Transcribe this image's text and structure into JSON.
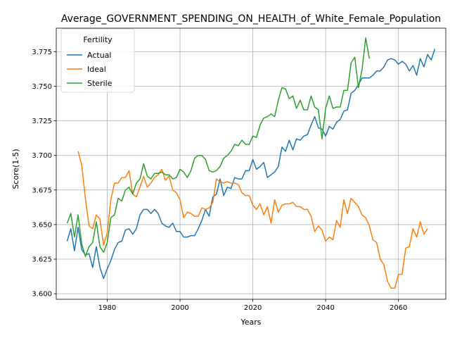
{
  "chart_data": {
    "type": "line",
    "title": "Average_GOVERNMENT_SPENDING_ON_HEALTH_of_White_Female_Population",
    "xlabel": "Years",
    "ylabel": "Score(1-5)",
    "xlim": [
      1966,
      2073
    ],
    "ylim": [
      3.596,
      3.792
    ],
    "xticks": [
      1980,
      2000,
      2020,
      2040,
      2060
    ],
    "yticks": [
      3.6,
      3.625,
      3.65,
      3.675,
      3.7,
      3.725,
      3.75,
      3.775
    ],
    "ytick_labels": [
      "3.600",
      "3.625",
      "3.650",
      "3.675",
      "3.700",
      "3.725",
      "3.750",
      "3.775"
    ],
    "grid": true,
    "legend": {
      "title": "Fertility",
      "placement": "top-left"
    },
    "series": [
      {
        "name": "Actual",
        "color": "#1f77b4",
        "x_start": 1969,
        "values": [
          3.638,
          3.647,
          3.631,
          3.648,
          3.632,
          3.628,
          3.629,
          3.619,
          3.634,
          3.619,
          3.611,
          3.618,
          3.624,
          3.632,
          3.637,
          3.638,
          3.646,
          3.647,
          3.643,
          3.647,
          3.657,
          3.661,
          3.661,
          3.658,
          3.661,
          3.658,
          3.651,
          3.649,
          3.648,
          3.651,
          3.645,
          3.645,
          3.641,
          3.641,
          3.642,
          3.642,
          3.647,
          3.653,
          3.661,
          3.656,
          3.67,
          3.672,
          3.683,
          3.671,
          3.677,
          3.676,
          3.684,
          3.683,
          3.683,
          3.689,
          3.689,
          3.697,
          3.69,
          3.692,
          3.695,
          3.684,
          3.686,
          3.688,
          3.692,
          3.706,
          3.703,
          3.711,
          3.704,
          3.712,
          3.711,
          3.714,
          3.715,
          3.722,
          3.728,
          3.72,
          3.719,
          3.714,
          3.721,
          3.719,
          3.724,
          3.726,
          3.732,
          3.733,
          3.745,
          3.747,
          3.751,
          3.756,
          3.756,
          3.756,
          3.758,
          3.761,
          3.761,
          3.764,
          3.769,
          3.77,
          3.769,
          3.766,
          3.768,
          3.766,
          3.761,
          3.765,
          3.758,
          3.77,
          3.764,
          3.773,
          3.769,
          3.777
        ]
      },
      {
        "name": "Ideal",
        "color": "#ff7f0e",
        "x_start": 1972,
        "values": [
          3.703,
          3.693,
          3.669,
          3.649,
          3.647,
          3.657,
          3.654,
          3.635,
          3.644,
          3.668,
          3.68,
          3.68,
          3.684,
          3.684,
          3.689,
          3.672,
          3.67,
          3.677,
          3.685,
          3.677,
          3.68,
          3.684,
          3.686,
          3.69,
          3.682,
          3.685,
          3.675,
          3.673,
          3.668,
          3.655,
          3.659,
          3.658,
          3.656,
          3.656,
          3.662,
          3.661,
          3.662,
          3.666,
          3.683,
          3.681,
          3.68,
          3.681,
          3.68,
          3.68,
          3.679,
          3.673,
          3.671,
          3.671,
          3.664,
          3.661,
          3.665,
          3.657,
          3.663,
          3.651,
          3.668,
          3.659,
          3.664,
          3.665,
          3.665,
          3.666,
          3.663,
          3.663,
          3.661,
          3.661,
          3.656,
          3.645,
          3.649,
          3.646,
          3.638,
          3.641,
          3.639,
          3.653,
          3.648,
          3.668,
          3.658,
          3.669,
          3.666,
          3.663,
          3.657,
          3.655,
          3.649,
          3.639,
          3.637,
          3.625,
          3.621,
          3.609,
          3.604,
          3.604,
          3.614,
          3.614,
          3.633,
          3.634,
          3.647,
          3.641,
          3.652,
          3.643,
          3.647
        ]
      },
      {
        "name": "Sterile",
        "color": "#2ca02c",
        "x_start": 1969,
        "values": [
          3.651,
          3.658,
          3.641,
          3.657,
          3.636,
          3.627,
          3.634,
          3.637,
          3.652,
          3.634,
          3.63,
          3.637,
          3.655,
          3.657,
          3.669,
          3.667,
          3.675,
          3.677,
          3.672,
          3.68,
          3.683,
          3.694,
          3.685,
          3.683,
          3.687,
          3.687,
          3.688,
          3.686,
          3.686,
          3.683,
          3.684,
          3.69,
          3.688,
          3.684,
          3.689,
          3.698,
          3.7,
          3.7,
          3.697,
          3.689,
          3.688,
          3.689,
          3.692,
          3.698,
          3.7,
          3.703,
          3.708,
          3.707,
          3.711,
          3.708,
          3.708,
          3.714,
          3.713,
          3.722,
          3.727,
          3.728,
          3.73,
          3.728,
          3.74,
          3.749,
          3.748,
          3.741,
          3.743,
          3.734,
          3.74,
          3.733,
          3.733,
          3.743,
          3.735,
          3.733,
          3.712,
          3.734,
          3.743,
          3.734,
          3.735,
          3.735,
          3.747,
          3.747,
          3.767,
          3.771,
          3.749,
          3.762,
          3.785,
          3.77
        ]
      }
    ]
  }
}
